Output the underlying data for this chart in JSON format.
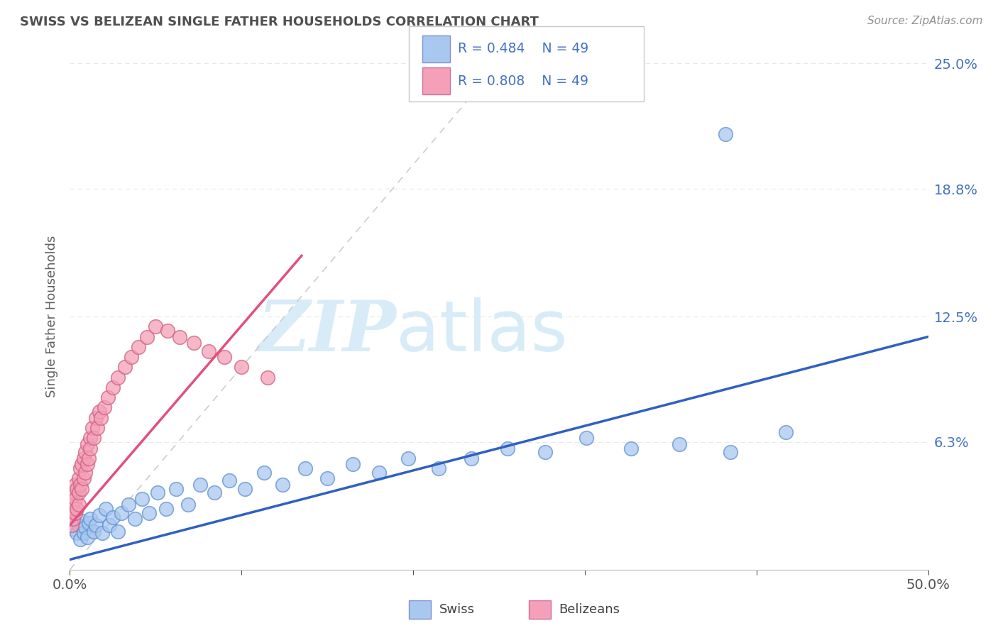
{
  "title": "SWISS VS BELIZEAN SINGLE FATHER HOUSEHOLDS CORRELATION CHART",
  "source": "Source: ZipAtlas.com",
  "ylabel": "Single Father Households",
  "xlim": [
    0.0,
    0.5
  ],
  "ylim": [
    0.0,
    0.25
  ],
  "xtick_labels": [
    "0.0%",
    "",
    "",
    "",
    "",
    "50.0%"
  ],
  "ytick_labels_right": [
    "6.3%",
    "12.5%",
    "18.8%",
    "25.0%"
  ],
  "ytick_vals_right": [
    0.063,
    0.125,
    0.188,
    0.25
  ],
  "swiss_R": 0.484,
  "swiss_N": 49,
  "belizean_R": 0.808,
  "belizean_N": 49,
  "swiss_color": "#A8C8F0",
  "belizean_color": "#F4A0B8",
  "swiss_line_color": "#3060C0",
  "belizean_line_color": "#E05080",
  "ref_line_color": "#C8C8C8",
  "legend_text_color": "#4472C4",
  "title_color": "#505050",
  "source_color": "#909090",
  "background_color": "#FFFFFF",
  "grid_color": "#E8E8E8",
  "watermark_zip": "ZIP",
  "watermark_atlas": "atlas",
  "watermark_color": "#D8ECF8",
  "swiss_x": [
    0.002,
    0.003,
    0.004,
    0.005,
    0.006,
    0.007,
    0.008,
    0.009,
    0.01,
    0.011,
    0.012,
    0.014,
    0.015,
    0.017,
    0.019,
    0.021,
    0.023,
    0.025,
    0.028,
    0.03,
    0.034,
    0.038,
    0.042,
    0.046,
    0.051,
    0.056,
    0.062,
    0.069,
    0.076,
    0.084,
    0.093,
    0.102,
    0.113,
    0.124,
    0.137,
    0.15,
    0.165,
    0.18,
    0.197,
    0.215,
    0.234,
    0.255,
    0.277,
    0.301,
    0.327,
    0.355,
    0.385,
    0.417,
    0.382
  ],
  "swiss_y": [
    0.028,
    0.02,
    0.018,
    0.022,
    0.015,
    0.024,
    0.018,
    0.021,
    0.016,
    0.023,
    0.025,
    0.019,
    0.022,
    0.027,
    0.018,
    0.03,
    0.022,
    0.026,
    0.019,
    0.028,
    0.032,
    0.025,
    0.035,
    0.028,
    0.038,
    0.03,
    0.04,
    0.032,
    0.042,
    0.038,
    0.044,
    0.04,
    0.048,
    0.042,
    0.05,
    0.045,
    0.052,
    0.048,
    0.055,
    0.05,
    0.055,
    0.06,
    0.058,
    0.065,
    0.06,
    0.062,
    0.058,
    0.068,
    0.215
  ],
  "belizean_x": [
    0.001,
    0.001,
    0.001,
    0.002,
    0.002,
    0.002,
    0.003,
    0.003,
    0.003,
    0.004,
    0.004,
    0.005,
    0.005,
    0.005,
    0.006,
    0.006,
    0.007,
    0.007,
    0.008,
    0.008,
    0.009,
    0.009,
    0.01,
    0.01,
    0.011,
    0.012,
    0.012,
    0.013,
    0.014,
    0.015,
    0.016,
    0.017,
    0.018,
    0.02,
    0.022,
    0.025,
    0.028,
    0.032,
    0.036,
    0.04,
    0.045,
    0.05,
    0.057,
    0.064,
    0.072,
    0.081,
    0.09,
    0.1,
    0.115
  ],
  "belizean_y": [
    0.028,
    0.022,
    0.032,
    0.025,
    0.03,
    0.038,
    0.028,
    0.035,
    0.042,
    0.03,
    0.04,
    0.032,
    0.045,
    0.038,
    0.042,
    0.05,
    0.04,
    0.052,
    0.045,
    0.055,
    0.048,
    0.058,
    0.052,
    0.062,
    0.055,
    0.065,
    0.06,
    0.07,
    0.065,
    0.075,
    0.07,
    0.078,
    0.075,
    0.08,
    0.085,
    0.09,
    0.095,
    0.1,
    0.105,
    0.11,
    0.115,
    0.12,
    0.118,
    0.115,
    0.112,
    0.108,
    0.105,
    0.1,
    0.095
  ],
  "swiss_trend_x": [
    0.0,
    0.5
  ],
  "swiss_trend_y": [
    0.005,
    0.115
  ],
  "belizean_trend_x": [
    0.0,
    0.135
  ],
  "belizean_trend_y": [
    0.022,
    0.155
  ],
  "ref_line_x": [
    0.0,
    0.25
  ],
  "ref_line_y": [
    0.0,
    0.25
  ]
}
